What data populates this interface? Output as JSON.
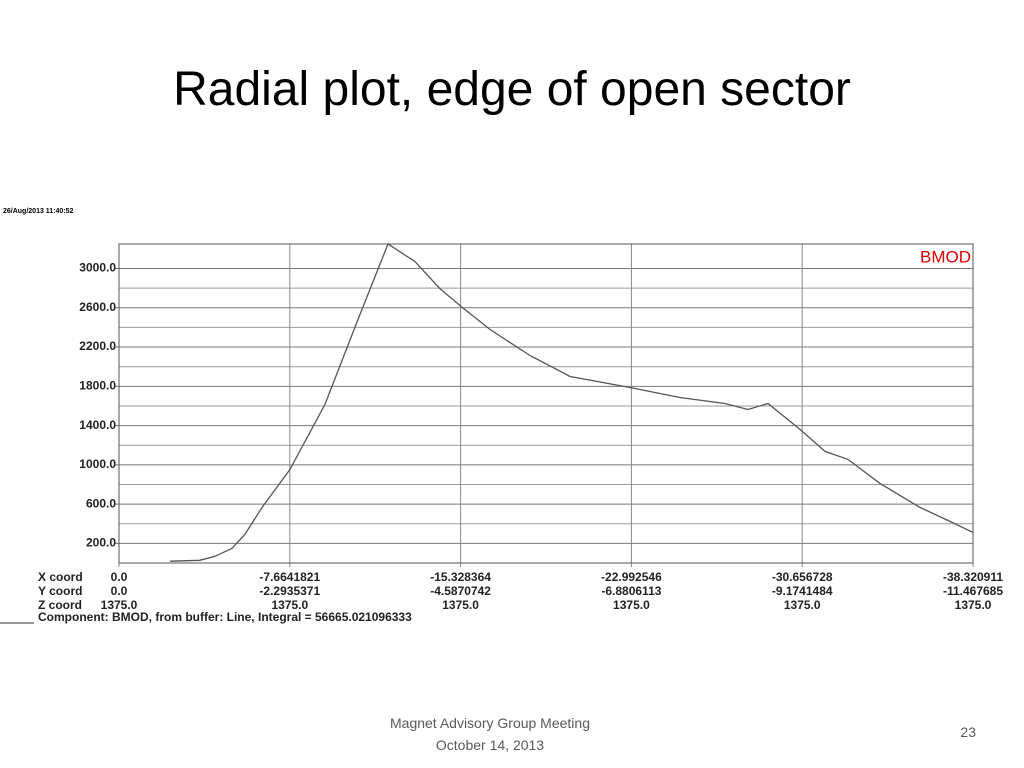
{
  "title": "Radial plot, edge of open sector",
  "footer": {
    "lines": [
      "Magnet Advisory Group  Meeting",
      "October 14, 2013"
    ],
    "page": "23"
  },
  "chart_data": {
    "type": "line",
    "timestamp": "26/Aug/2013 11:40:52",
    "note": "Component: BMOD, from buffer: Line, Integral = 56665.021096333",
    "x": [
      -2.29,
      -3.63,
      -4.31,
      -5.07,
      -5.65,
      -6.42,
      -7.67,
      -9.24,
      -10.81,
      -12.07,
      -13.28,
      -14.4,
      -15.35,
      -16.65,
      -18.44,
      -20.24,
      -22.93,
      -25.17,
      -27.19,
      -28.22,
      -29.12,
      -30.56,
      -31.68,
      -32.71,
      -34.15,
      -35.94,
      -37.29,
      -38.32
    ],
    "series": [
      {
        "name": "BMOD",
        "color": "#555555",
        "legend_color": "#e00000",
        "values": [
          18,
          27,
          68,
          149,
          292,
          566,
          953,
          1615,
          2531,
          3250,
          3071,
          2796,
          2613,
          2379,
          2114,
          1900,
          1788,
          1686,
          1625,
          1564,
          1625,
          1361,
          1137,
          1055,
          811,
          566,
          424,
          312
        ]
      }
    ],
    "xlim": [
      0,
      -38.320911
    ],
    "xticks": [
      {
        "value": 0,
        "label": "0.0"
      },
      -7.6641821,
      -15.328364,
      -22.992546,
      -30.656728,
      -38.320911
    ],
    "x_rows": [
      {
        "name": "Y coord",
        "labels": [
          "0.0",
          "-2.2935371",
          "-4.5870742",
          "-6.8806113",
          "-9.1741484",
          "-11.467685"
        ]
      },
      {
        "name": "Z coord",
        "labels": [
          "1375.0",
          "1375.0",
          "1375.0",
          "1375.0",
          "1375.0",
          "1375.0"
        ]
      }
    ],
    "x_name": "X coord",
    "ylim": [
      0,
      3250
    ],
    "yticks": [
      {
        "value": 200,
        "label": "200.0"
      },
      {
        "value": 600,
        "label": "600.0"
      },
      {
        "value": 1000,
        "label": "1000.0"
      },
      {
        "value": 1400,
        "label": "1400.0"
      },
      {
        "value": 1800,
        "label": "1800.0"
      },
      {
        "value": 2200,
        "label": "2200.0"
      },
      {
        "value": 2600,
        "label": "2600.0"
      },
      {
        "value": 3000,
        "label": "3000.0"
      }
    ],
    "minor_yticks": [
      400,
      800,
      1200,
      1600,
      2000,
      2400,
      2800
    ],
    "grid": true
  }
}
